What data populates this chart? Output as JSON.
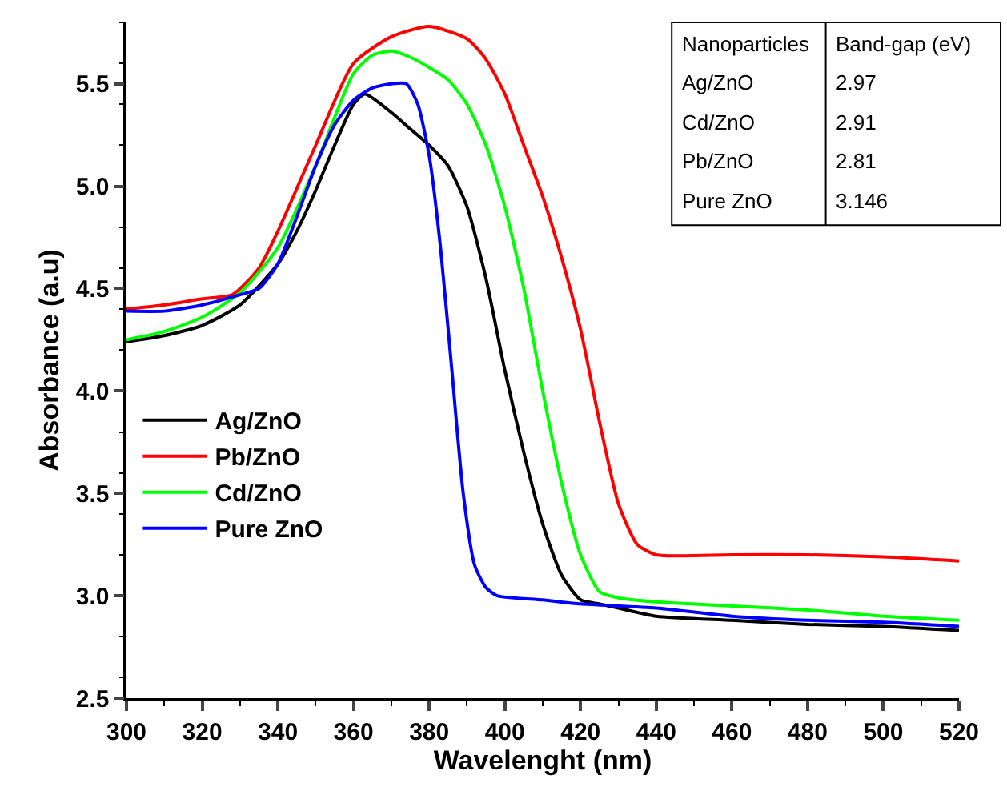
{
  "chart_data": {
    "type": "line",
    "xlabel": "Wavelenght (nm)",
    "ylabel": "Absorbance (a.u)",
    "xlim": [
      300,
      520
    ],
    "xticks": [
      300,
      320,
      340,
      360,
      380,
      400,
      420,
      440,
      460,
      480,
      500,
      520
    ],
    "ylim": [
      2.5,
      5.8
    ],
    "yticks": [
      2.5,
      {
        "value": 3,
        "label": "3.0"
      },
      3.5,
      {
        "value": 4,
        "label": "4.0"
      },
      4.5,
      {
        "value": 5,
        "label": "5.0"
      },
      5.5
    ],
    "legend": "left",
    "marker": "none",
    "line_style": "solid",
    "annotations": [
      "Nanoparticles",
      "Band-gap (eV)",
      "Ag/ZnO",
      "2.97",
      "Cd/ZnO",
      "2.91",
      "Pb/ZnO",
      "2.81",
      "Pure ZnO",
      "3.146"
    ],
    "series": [
      {
        "name": "Ag/ZnO",
        "color": "#000000",
        "x": [
          300,
          310,
          320,
          330,
          340,
          345,
          350,
          355,
          360,
          363,
          370,
          375,
          380,
          385,
          390,
          395,
          400,
          405,
          410,
          415,
          420,
          425,
          430,
          440,
          460,
          480,
          500,
          520
        ],
        "values": [
          4.24,
          4.27,
          4.32,
          4.42,
          4.62,
          4.78,
          4.98,
          5.2,
          5.4,
          5.45,
          5.36,
          5.28,
          5.2,
          5.1,
          4.9,
          4.55,
          4.1,
          3.7,
          3.35,
          3.1,
          2.98,
          2.96,
          2.94,
          2.9,
          2.88,
          2.86,
          2.85,
          2.83
        ]
      },
      {
        "name": "Pb/ZnO",
        "color": "#ff0000",
        "x": [
          300,
          310,
          320,
          328,
          335,
          340,
          350,
          360,
          370,
          380,
          390,
          395,
          400,
          405,
          410,
          415,
          420,
          425,
          430,
          435,
          440,
          460,
          480,
          500,
          520
        ],
        "values": [
          4.4,
          4.42,
          4.45,
          4.47,
          4.6,
          4.78,
          5.2,
          5.6,
          5.73,
          5.78,
          5.72,
          5.62,
          5.45,
          5.2,
          4.95,
          4.65,
          4.3,
          3.85,
          3.45,
          3.25,
          3.2,
          3.2,
          3.2,
          3.19,
          3.17
        ]
      },
      {
        "name": "Cd/ZnO",
        "color": "#00ff00",
        "x": [
          300,
          310,
          320,
          330,
          340,
          350,
          360,
          365,
          370,
          375,
          380,
          385,
          390,
          395,
          400,
          405,
          410,
          415,
          420,
          425,
          430,
          440,
          460,
          480,
          500,
          520
        ],
        "values": [
          4.25,
          4.29,
          4.36,
          4.48,
          4.7,
          5.1,
          5.55,
          5.64,
          5.66,
          5.63,
          5.58,
          5.52,
          5.4,
          5.2,
          4.9,
          4.5,
          4.0,
          3.55,
          3.2,
          3.02,
          2.99,
          2.97,
          2.95,
          2.93,
          2.9,
          2.88
        ]
      },
      {
        "name": "Pure ZnO",
        "color": "#0000ff",
        "x": [
          300,
          310,
          320,
          330,
          335,
          340,
          345,
          350,
          355,
          360,
          365,
          370,
          374,
          377,
          380,
          383,
          386,
          389,
          392,
          395,
          398,
          410,
          420,
          440,
          460,
          480,
          500,
          520
        ],
        "values": [
          4.39,
          4.39,
          4.42,
          4.47,
          4.5,
          4.62,
          4.85,
          5.1,
          5.3,
          5.42,
          5.48,
          5.5,
          5.5,
          5.4,
          5.15,
          4.7,
          4.1,
          3.5,
          3.15,
          3.04,
          3.0,
          2.98,
          2.96,
          2.94,
          2.9,
          2.88,
          2.87,
          2.85
        ]
      }
    ]
  }
}
